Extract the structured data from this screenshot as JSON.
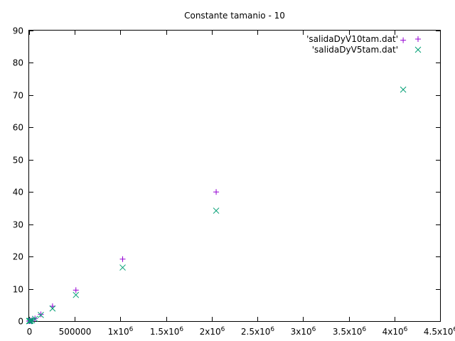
{
  "chart_data": {
    "type": "scatter",
    "title": "Constante tamanio - 10",
    "xlabel": "",
    "ylabel": "",
    "xlim": [
      0,
      4500000
    ],
    "ylim": [
      0,
      90
    ],
    "grid": false,
    "legend_position": "top-right",
    "x_ticks": [
      {
        "value": 0,
        "label": "0"
      },
      {
        "value": 500000,
        "label": "500000"
      },
      {
        "value": 1000000,
        "label": "1x10",
        "exp": "6"
      },
      {
        "value": 1500000,
        "label": "1.5x10",
        "exp": "6"
      },
      {
        "value": 2000000,
        "label": "2x10",
        "exp": "6"
      },
      {
        "value": 2500000,
        "label": "2.5x10",
        "exp": "6"
      },
      {
        "value": 3000000,
        "label": "3x10",
        "exp": "6"
      },
      {
        "value": 3500000,
        "label": "3.5x10",
        "exp": "6"
      },
      {
        "value": 4000000,
        "label": "4x10",
        "exp": "6"
      },
      {
        "value": 4500000,
        "label": "4.5x10",
        "exp": "6"
      }
    ],
    "y_ticks": [
      {
        "value": 0,
        "label": "0"
      },
      {
        "value": 10,
        "label": "10"
      },
      {
        "value": 20,
        "label": "20"
      },
      {
        "value": 30,
        "label": "30"
      },
      {
        "value": 40,
        "label": "40"
      },
      {
        "value": 50,
        "label": "50"
      },
      {
        "value": 60,
        "label": "60"
      },
      {
        "value": 70,
        "label": "70"
      },
      {
        "value": 80,
        "label": "80"
      },
      {
        "value": 90,
        "label": "90"
      }
    ],
    "series": [
      {
        "name": "'salidaDyV10tam.dat'",
        "marker": "plus",
        "color": "#9400d3",
        "points": [
          [
            500,
            0.0
          ],
          [
            1000,
            0.0
          ],
          [
            2000,
            0.01
          ],
          [
            4000,
            0.02
          ],
          [
            8000,
            0.05
          ],
          [
            16000,
            0.12
          ],
          [
            32000,
            0.3
          ],
          [
            64000,
            0.8
          ],
          [
            128000,
            2.1
          ],
          [
            256000,
            4.6
          ],
          [
            512000,
            9.6
          ],
          [
            1024000,
            19.2
          ],
          [
            2048000,
            40.0
          ],
          [
            4096000,
            87.0
          ]
        ]
      },
      {
        "name": "'salidaDyV5tam.dat'",
        "marker": "cross",
        "color": "#009e73",
        "points": [
          [
            500,
            0.0
          ],
          [
            1000,
            0.0
          ],
          [
            2000,
            0.01
          ],
          [
            4000,
            0.02
          ],
          [
            8000,
            0.04
          ],
          [
            16000,
            0.1
          ],
          [
            32000,
            0.25
          ],
          [
            64000,
            0.7
          ],
          [
            128000,
            1.9
          ],
          [
            256000,
            3.9
          ],
          [
            512000,
            8.1
          ],
          [
            1024000,
            16.6
          ],
          [
            2048000,
            34.2
          ],
          [
            4096000,
            71.7
          ]
        ]
      }
    ]
  }
}
